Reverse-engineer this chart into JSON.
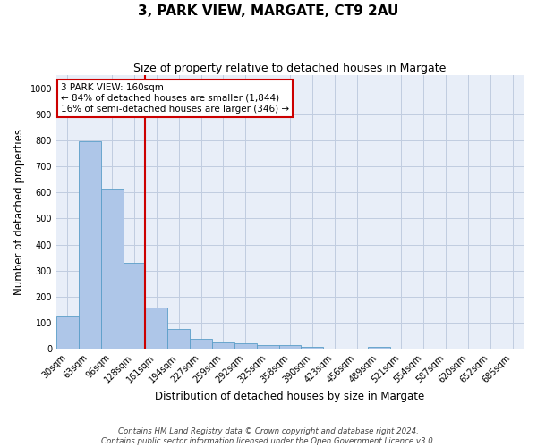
{
  "title": "3, PARK VIEW, MARGATE, CT9 2AU",
  "subtitle": "Size of property relative to detached houses in Margate",
  "xlabel": "Distribution of detached houses by size in Margate",
  "ylabel": "Number of detached properties",
  "categories": [
    "30sqm",
    "63sqm",
    "96sqm",
    "128sqm",
    "161sqm",
    "194sqm",
    "227sqm",
    "259sqm",
    "292sqm",
    "325sqm",
    "358sqm",
    "390sqm",
    "423sqm",
    "456sqm",
    "489sqm",
    "521sqm",
    "554sqm",
    "587sqm",
    "620sqm",
    "652sqm",
    "685sqm"
  ],
  "values": [
    125,
    795,
    615,
    330,
    160,
    75,
    40,
    25,
    22,
    15,
    15,
    8,
    0,
    0,
    8,
    0,
    0,
    0,
    0,
    0,
    0
  ],
  "bar_color": "#aec6e8",
  "bar_edge_color": "#5a9ec8",
  "vline_x": 3.5,
  "vline_color": "#cc0000",
  "annotation_text": "3 PARK VIEW: 160sqm\n← 84% of detached houses are smaller (1,844)\n16% of semi-detached houses are larger (346) →",
  "annotation_box_color": "#ffffff",
  "annotation_box_edge_color": "#cc0000",
  "ylim": [
    0,
    1050
  ],
  "yticks": [
    0,
    100,
    200,
    300,
    400,
    500,
    600,
    700,
    800,
    900,
    1000
  ],
  "grid_color": "#c0cce0",
  "background_color": "#e8eef8",
  "footnote1": "Contains HM Land Registry data © Crown copyright and database right 2024.",
  "footnote2": "Contains public sector information licensed under the Open Government Licence v3.0.",
  "title_fontsize": 11,
  "subtitle_fontsize": 9,
  "xlabel_fontsize": 8.5,
  "ylabel_fontsize": 8.5,
  "tick_fontsize": 7,
  "annot_fontsize": 7.5
}
